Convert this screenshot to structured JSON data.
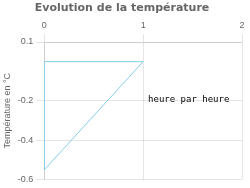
{
  "chart_data": {
    "type": "area",
    "title": "Evolution de la température",
    "ylabel": "Température en °C",
    "x": [
      0,
      0,
      1,
      0
    ],
    "values": [
      0,
      -0.55,
      0,
      0
    ],
    "color": "#87CEEB",
    "xlim": [
      0,
      2
    ],
    "ylim": [
      -0.6,
      0.1
    ],
    "xticks": [
      0,
      1,
      2
    ],
    "yticks": [
      0.1,
      -0.2,
      -0.4,
      -0.6
    ],
    "grid": true,
    "annotations": [
      {
        "text": "heure par heure",
        "x": 1.05,
        "y": -0.17
      }
    ]
  }
}
